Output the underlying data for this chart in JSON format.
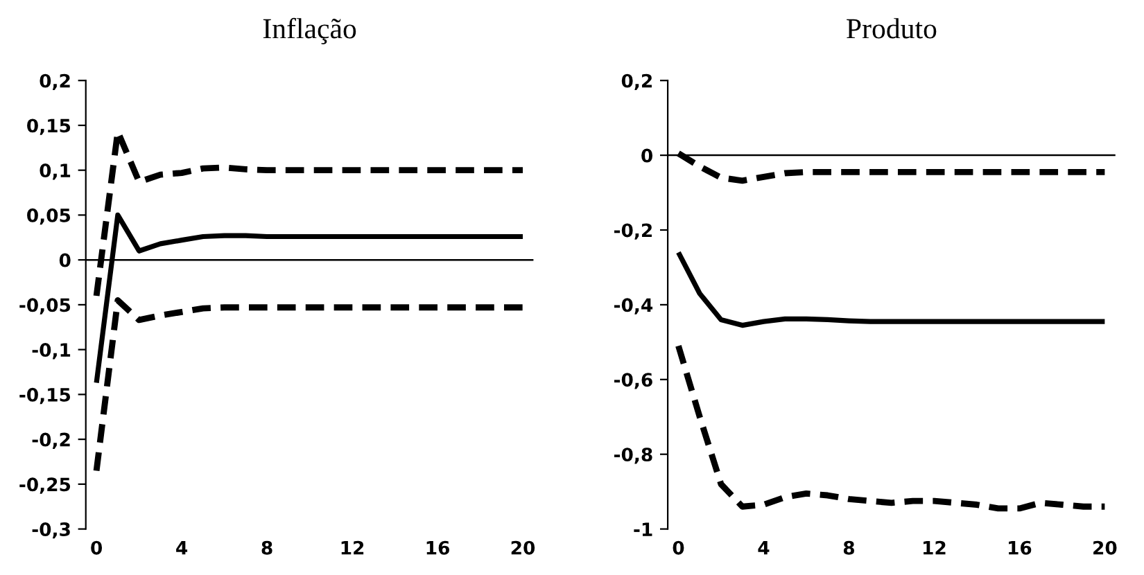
{
  "chart_data": [
    {
      "type": "line",
      "title": "Inflação",
      "x": [
        0,
        1,
        2,
        3,
        4,
        5,
        6,
        7,
        8,
        9,
        10,
        11,
        12,
        13,
        14,
        15,
        16,
        17,
        18,
        19,
        20
      ],
      "series": [
        {
          "color": "#000000",
          "line_style": "dashed",
          "values": [
            -0.04,
            0.143,
            0.087,
            0.095,
            0.097,
            0.102,
            0.103,
            0.101,
            0.1,
            0.1,
            0.1,
            0.1,
            0.1,
            0.1,
            0.1,
            0.1,
            0.1,
            0.1,
            0.1,
            0.1,
            0.1
          ]
        },
        {
          "color": "#000000",
          "line_style": "solid",
          "values": [
            -0.137,
            0.05,
            0.01,
            0.018,
            0.022,
            0.026,
            0.027,
            0.027,
            0.026,
            0.026,
            0.026,
            0.026,
            0.026,
            0.026,
            0.026,
            0.026,
            0.026,
            0.026,
            0.026,
            0.026,
            0.026
          ]
        },
        {
          "color": "#000000",
          "line_style": "dashed",
          "values": [
            -0.235,
            -0.045,
            -0.067,
            -0.062,
            -0.058,
            -0.054,
            -0.053,
            -0.053,
            -0.053,
            -0.053,
            -0.053,
            -0.053,
            -0.053,
            -0.053,
            -0.053,
            -0.053,
            -0.053,
            -0.053,
            -0.053,
            -0.053,
            -0.053
          ]
        }
      ],
      "xlim": [
        -0.5,
        20.5
      ],
      "xticks": [
        0,
        4,
        8,
        12,
        16,
        20
      ],
      "ylim": [
        -0.3,
        0.2
      ],
      "yticks": [
        {
          "value": -0.3,
          "label": "-0,3"
        },
        {
          "value": -0.25,
          "label": "-0,25"
        },
        {
          "value": -0.2,
          "label": "-0,2"
        },
        {
          "value": -0.15,
          "label": "-0,15"
        },
        {
          "value": -0.1,
          "label": "-0,1"
        },
        {
          "value": -0.05,
          "label": "-0,05"
        },
        0,
        {
          "value": 0.05,
          "label": "0,05"
        },
        {
          "value": 0.1,
          "label": "0,1"
        },
        {
          "value": 0.15,
          "label": "0,15"
        },
        {
          "value": 0.2,
          "label": "0,2"
        }
      ],
      "ref_lines": [
        {
          "axis": "y",
          "value": 0,
          "color": "#000000"
        }
      ],
      "grid": false,
      "legend": false
    },
    {
      "type": "line",
      "title": "Produto",
      "x": [
        0,
        1,
        2,
        3,
        4,
        5,
        6,
        7,
        8,
        9,
        10,
        11,
        12,
        13,
        14,
        15,
        16,
        17,
        18,
        19,
        20
      ],
      "series": [
        {
          "color": "#000000",
          "line_style": "dashed",
          "values": [
            0.005,
            -0.03,
            -0.06,
            -0.068,
            -0.058,
            -0.048,
            -0.045,
            -0.045,
            -0.045,
            -0.045,
            -0.045,
            -0.045,
            -0.045,
            -0.045,
            -0.045,
            -0.045,
            -0.045,
            -0.045,
            -0.045,
            -0.045,
            -0.045
          ]
        },
        {
          "color": "#000000",
          "line_style": "solid",
          "values": [
            -0.26,
            -0.37,
            -0.44,
            -0.455,
            -0.445,
            -0.438,
            -0.438,
            -0.44,
            -0.443,
            -0.445,
            -0.445,
            -0.445,
            -0.445,
            -0.445,
            -0.445,
            -0.445,
            -0.445,
            -0.445,
            -0.445,
            -0.445,
            -0.445
          ]
        },
        {
          "color": "#000000",
          "line_style": "dashed",
          "values": [
            -0.51,
            -0.7,
            -0.88,
            -0.94,
            -0.935,
            -0.915,
            -0.905,
            -0.91,
            -0.92,
            -0.925,
            -0.93,
            -0.925,
            -0.925,
            -0.93,
            -0.935,
            -0.945,
            -0.945,
            -0.93,
            -0.935,
            -0.94,
            -0.94
          ]
        }
      ],
      "xlim": [
        -0.5,
        20.5
      ],
      "xticks": [
        0,
        4,
        8,
        12,
        16,
        20
      ],
      "ylim": [
        -1,
        0.2
      ],
      "yticks": [
        -1,
        {
          "value": -0.8,
          "label": "-0,8"
        },
        {
          "value": -0.6,
          "label": "-0,6"
        },
        {
          "value": -0.4,
          "label": "-0,4"
        },
        {
          "value": -0.2,
          "label": "-0,2"
        },
        0,
        {
          "value": 0.2,
          "label": "0,2"
        }
      ],
      "ref_lines": [
        {
          "axis": "y",
          "value": 0,
          "color": "#000000"
        }
      ],
      "grid": false,
      "legend": false
    }
  ]
}
